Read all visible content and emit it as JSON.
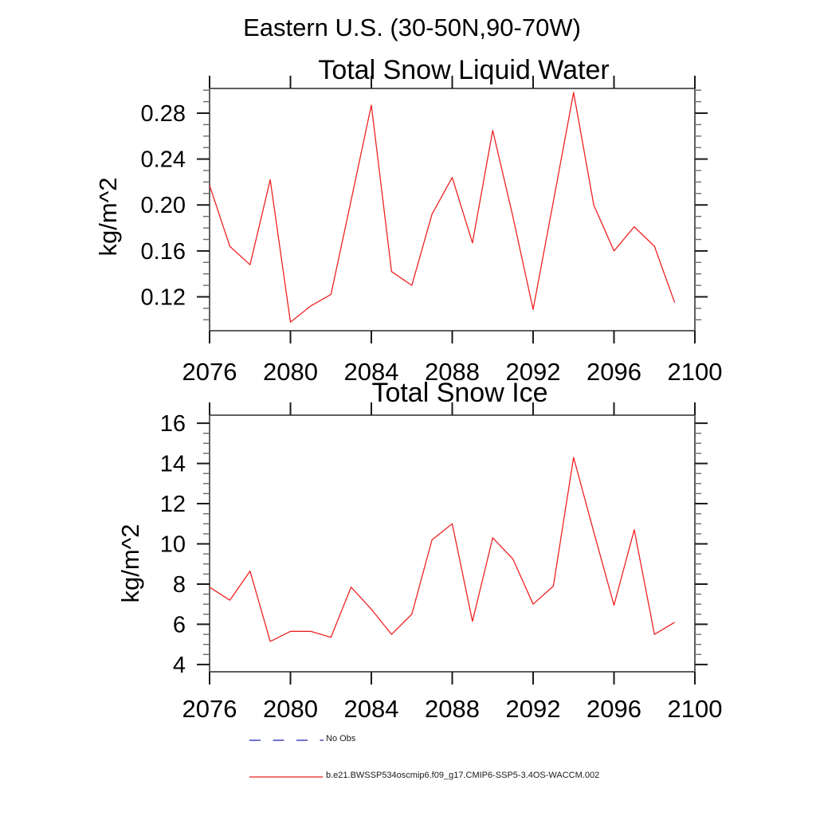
{
  "page": {
    "background": "#ffffff"
  },
  "header": {
    "region_title": "Eastern U.S. (30-50N,90-70W)"
  },
  "legend": [
    {
      "label": "No Obs",
      "color": "#7373cf",
      "style": "dashed"
    },
    {
      "label": "b.e21.BWSSP534oscmip6.f09_g17.CMIP6-SSP5-3.4OS-WACCM.002",
      "color": "#ee2222",
      "style": "solid"
    }
  ],
  "chart_data": [
    {
      "type": "line",
      "title": "Total Snow Liquid Water",
      "ylabel": "kg/m^2",
      "xlabel": "",
      "grid": false,
      "legend_position": "below",
      "xlim": [
        2076,
        2100
      ],
      "ylim": [
        0.0905,
        0.3015
      ],
      "x_major_ticks": [
        2076,
        2080,
        2084,
        2088,
        2092,
        2096,
        2100
      ],
      "x_tick_labels": [
        "2076",
        "2080",
        "2084",
        "2088",
        "2092",
        "2096",
        "2100"
      ],
      "y_major_ticks": [
        0.12,
        0.16,
        0.2,
        0.24,
        0.28
      ],
      "y_tick_labels": [
        "0.12",
        "0.16",
        "0.20",
        "0.24",
        "0.28"
      ],
      "y_minor_step": 0.01,
      "x": [
        2076,
        2077,
        2078,
        2079,
        2080,
        2081,
        2082,
        2083,
        2084,
        2085,
        2086,
        2087,
        2088,
        2089,
        2090,
        2091,
        2092,
        2093,
        2094,
        2095,
        2096,
        2097,
        2098,
        2099
      ],
      "series": [
        {
          "name": "b.e21.BWSSP534oscmip6.f09_g17.CMIP6-SSP5-3.4OS-WACCM.002",
          "color": "#ee2222",
          "values": [
            0.217,
            0.164,
            0.148,
            0.222,
            0.098,
            0.112,
            0.122,
            0.204,
            0.287,
            0.142,
            0.13,
            0.192,
            0.224,
            0.167,
            0.265,
            0.19,
            0.109,
            0.203,
            0.298,
            0.2,
            0.16,
            0.181,
            0.164,
            0.115
          ]
        }
      ]
    },
    {
      "type": "line",
      "title": "Total Snow Ice",
      "ylabel": "kg/m^2",
      "xlabel": "",
      "grid": false,
      "legend_position": "below",
      "xlim": [
        2076,
        2100
      ],
      "ylim": [
        3.64,
        16.4
      ],
      "x_major_ticks": [
        2076,
        2080,
        2084,
        2088,
        2092,
        2096,
        2100
      ],
      "x_tick_labels": [
        "2076",
        "2080",
        "2084",
        "2088",
        "2092",
        "2096",
        "2100"
      ],
      "y_major_ticks": [
        4,
        6,
        8,
        10,
        12,
        14,
        16
      ],
      "y_tick_labels": [
        "4",
        "6",
        "8",
        "10",
        "12",
        "14",
        "16"
      ],
      "y_minor_step": 0.5,
      "x": [
        2076,
        2077,
        2078,
        2079,
        2080,
        2081,
        2082,
        2083,
        2084,
        2085,
        2086,
        2087,
        2088,
        2089,
        2090,
        2091,
        2092,
        2093,
        2094,
        2095,
        2096,
        2097,
        2098,
        2099
      ],
      "series": [
        {
          "name": "b.e21.BWSSP534oscmip6.f09_g17.CMIP6-SSP5-3.4OS-WACCM.002",
          "color": "#ee2222",
          "values": [
            7.85,
            7.2,
            8.65,
            5.15,
            5.65,
            5.65,
            5.35,
            7.85,
            6.75,
            5.5,
            6.5,
            10.2,
            11.0,
            6.15,
            10.3,
            9.25,
            7.0,
            7.9,
            14.3,
            10.6,
            6.95,
            10.7,
            5.5,
            6.1
          ]
        }
      ]
    }
  ]
}
